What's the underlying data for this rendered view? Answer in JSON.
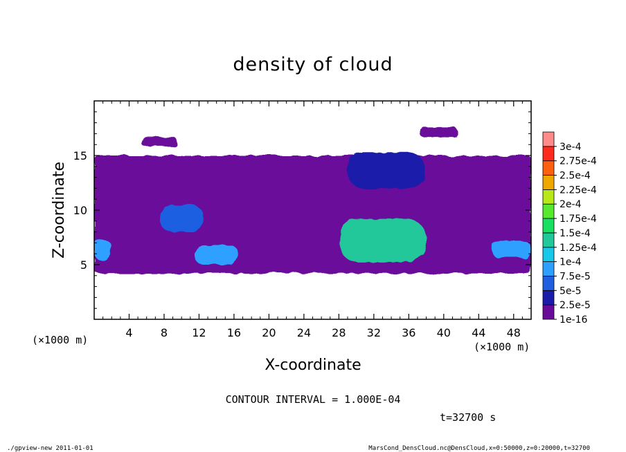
{
  "chart_data": {
    "type": "heatmap",
    "title": "density of cloud",
    "xlabel": "X-coordinate",
    "ylabel": "Z-coordinate",
    "x_unit": "(×1000 m)",
    "y_unit": "(×1000 m)",
    "xlim": [
      0,
      50
    ],
    "ylim": [
      0,
      20
    ],
    "x_ticks": [
      4,
      8,
      12,
      16,
      20,
      24,
      28,
      32,
      36,
      40,
      44,
      48
    ],
    "y_ticks": [
      5,
      10,
      15
    ],
    "colorbar_levels": [
      "1e-16",
      "2.5e-5",
      "5e-5",
      "7.5e-5",
      "1e-4",
      "1.25e-4",
      "1.5e-4",
      "1.75e-4",
      "2e-4",
      "2.25e-4",
      "2.5e-4",
      "2.75e-4",
      "3e-4"
    ],
    "colorbar_colors": [
      "#6a0a9a",
      "#1c1caa",
      "#1f5fe0",
      "#2fa0ff",
      "#18c8e8",
      "#20c89a",
      "#18e060",
      "#58e830",
      "#b8e818",
      "#f0a800",
      "#ff6010",
      "#ff2a1c",
      "#ff8a8a"
    ],
    "contour_interval": "CONTOUR INTERVAL = 1.000E-04",
    "time_label": "t=32700 s",
    "grid": false,
    "legend": "right",
    "regions": [
      {
        "name": "base-cloud-layer",
        "level": 0,
        "x": [
          0,
          50
        ],
        "z": [
          4.2,
          15.0
        ]
      },
      {
        "name": "upper-patch-left",
        "level": 0,
        "x": [
          5.4,
          9.5
        ],
        "z": [
          15.8,
          16.7
        ]
      },
      {
        "name": "upper-patch-right",
        "level": 0,
        "x": [
          37.2,
          41.6
        ],
        "z": [
          16.7,
          17.6
        ]
      },
      {
        "name": "dense-cell-x31",
        "level": 1,
        "x": [
          29.0,
          37.8
        ],
        "z": [
          12.0,
          15.3
        ]
      },
      {
        "name": "dense-cell-x8",
        "level": 2,
        "x": [
          7.5,
          12.5
        ],
        "z": [
          8.0,
          10.5
        ]
      },
      {
        "name": "core-x34",
        "level": 5,
        "x": [
          28.0,
          38.0
        ],
        "z": [
          5.2,
          9.2
        ]
      },
      {
        "name": "core-x15",
        "level": 3,
        "x": [
          11.5,
          16.5
        ],
        "z": [
          5.0,
          6.8
        ]
      },
      {
        "name": "core-x0",
        "level": 3,
        "x": [
          0,
          2.0
        ],
        "z": [
          5.4,
          7.3
        ]
      },
      {
        "name": "core-x48",
        "level": 3,
        "x": [
          45.5,
          50
        ],
        "z": [
          5.6,
          7.2
        ]
      }
    ]
  },
  "footer": {
    "left": "./gpview-new  2011-01-01",
    "right": "MarsCond_DensCloud.nc@DensCloud,x=0:50000,z=0:20000,t=32700"
  }
}
